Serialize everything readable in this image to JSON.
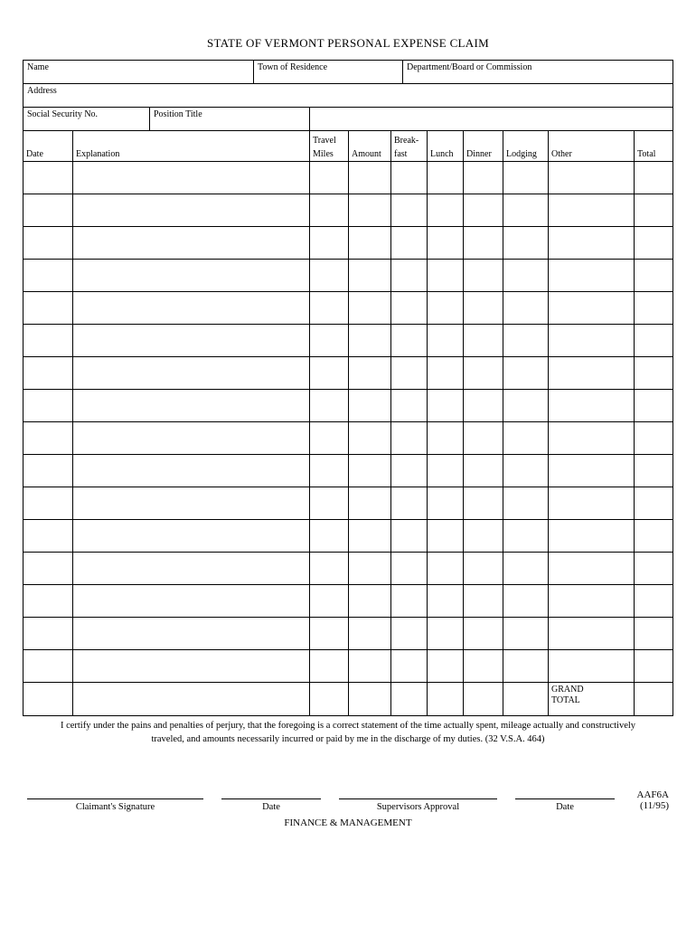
{
  "title": "STATE OF VERMONT PERSONAL EXPENSE CLAIM",
  "fields": {
    "name": "Name",
    "town": "Town of Residence",
    "dept": "Department/Board or Commission",
    "address": "Address",
    "ssn": "Social Security No.",
    "position": "Position Title"
  },
  "headers": {
    "date": "Date",
    "explanation": "Explanation",
    "travel": "Travel",
    "miles": "Miles",
    "amount": "Amount",
    "breakTop": "Break-",
    "breakBot": "fast",
    "lunch": "Lunch",
    "dinner": "Dinner",
    "lodging": "Lodging",
    "other": "Other",
    "total": "Total"
  },
  "grandTotal": {
    "line1": "GRAND",
    "line2": "TOTAL"
  },
  "certification": "I certify under the pains and penalties of perjury, that the foregoing is a correct statement of the time actually spent, mileage actually and constructively traveled, and amounts necessarily incurred or paid by me in the discharge of my duties. (32 V.S.A. 464)",
  "signatures": {
    "claimant": "Claimant's Signature",
    "date": "Date",
    "supervisor": "Supervisors Approval"
  },
  "formId": {
    "code": "AAF6A",
    "rev": "(11/95)"
  },
  "footer": "FINANCE & MANAGEMENT",
  "grid": {
    "row_count": 17,
    "columns": [
      "date",
      "explanation",
      "miles",
      "amount",
      "breakfast",
      "lunch",
      "dinner",
      "lodging",
      "other",
      "total"
    ]
  }
}
